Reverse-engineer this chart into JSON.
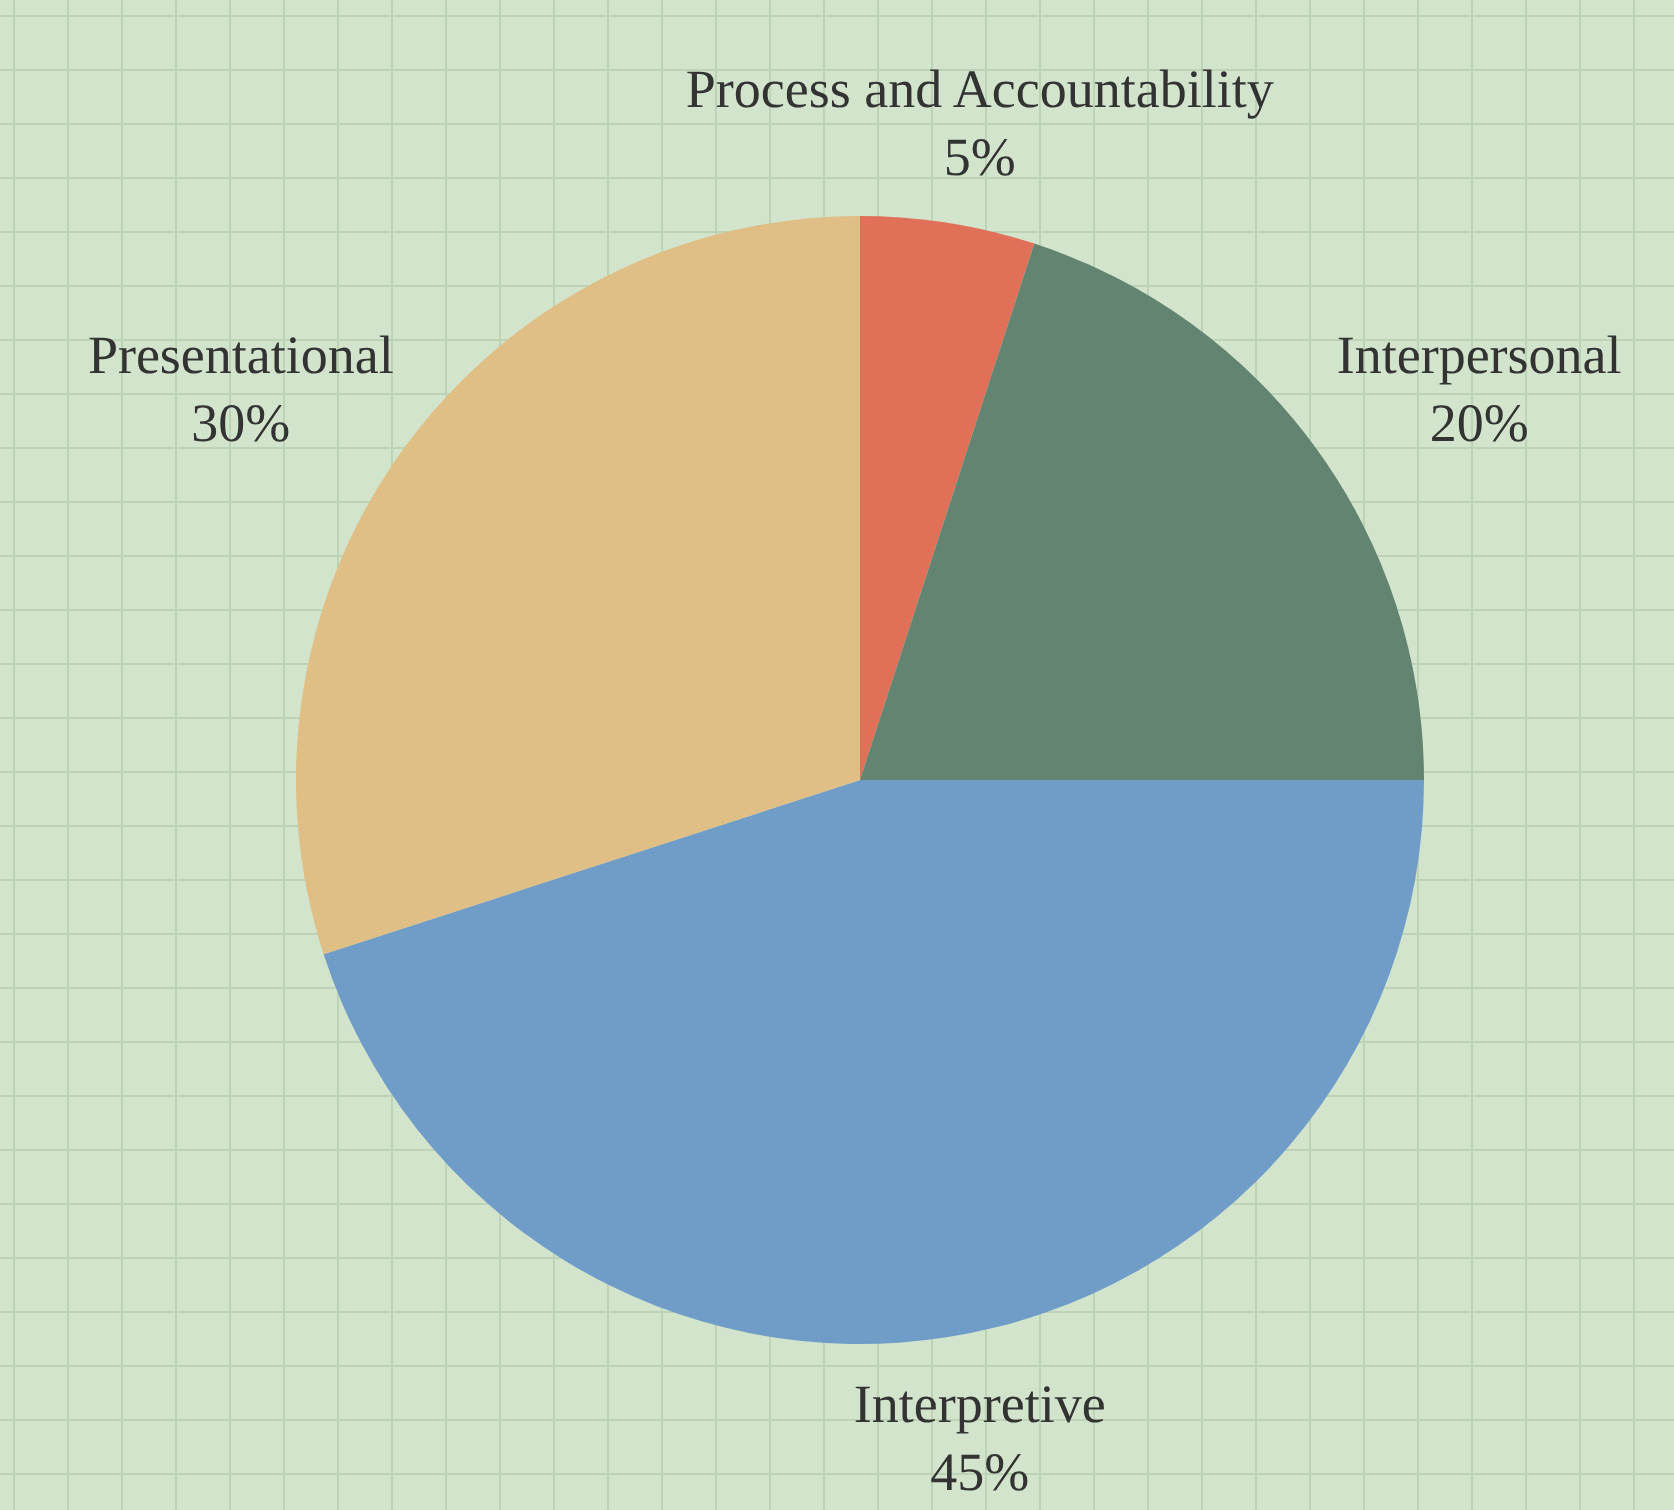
{
  "chart_data": {
    "type": "pie",
    "categories": [
      "Process and Accountability",
      "Interpersonal",
      "Interpretive",
      "Presentational"
    ],
    "values": [
      5,
      20,
      45,
      30
    ],
    "value_labels": [
      "5%",
      "20%",
      "45%",
      "30%"
    ],
    "colors": [
      "#e07058",
      "#628471",
      "#709dc8",
      "#dfbf86"
    ]
  }
}
